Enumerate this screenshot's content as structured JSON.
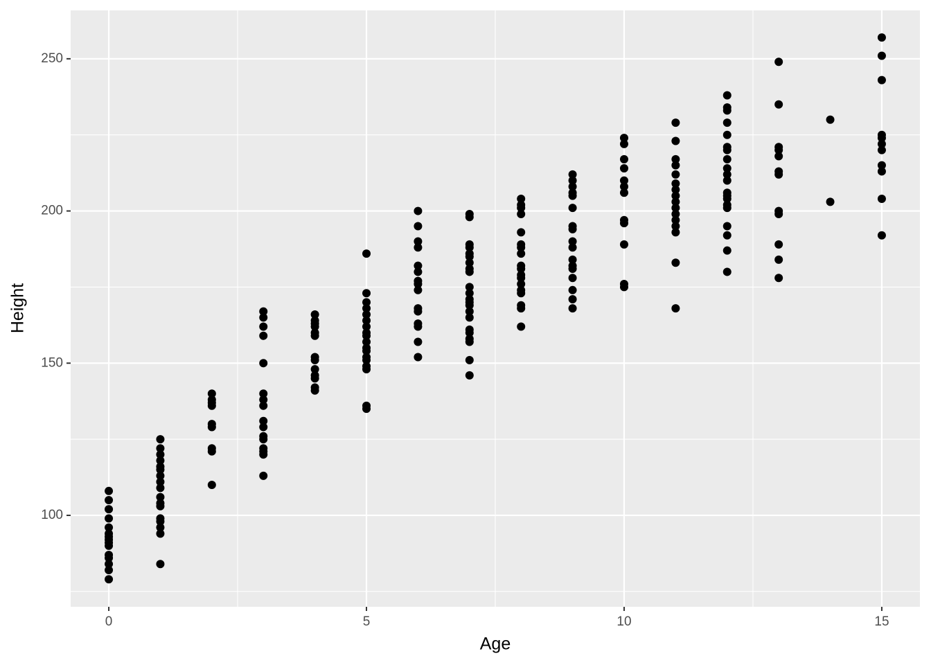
{
  "chart_data": {
    "type": "scatter",
    "x_label": "Age",
    "y_label": "Height",
    "color": "#000000",
    "panel_color": "#ebebeb",
    "grid": true,
    "xlim": [
      -0.74,
      15.74
    ],
    "ylim": [
      69.95,
      265.9
    ],
    "xticks": [
      0,
      5,
      10,
      15
    ],
    "yticks": [
      100,
      150,
      200,
      250
    ],
    "xminor": [
      2.5,
      7.5,
      12.5
    ],
    "yminor": [
      75,
      125,
      175,
      225
    ],
    "x": [
      0,
      0,
      0,
      0,
      0,
      0,
      0,
      0,
      0,
      0,
      0,
      0,
      0,
      0,
      0,
      1,
      1,
      1,
      1,
      1,
      1,
      1,
      1,
      1,
      1,
      1,
      1,
      1,
      1,
      1,
      1,
      1,
      2,
      2,
      2,
      2,
      2,
      2,
      2,
      2,
      2,
      3,
      3,
      3,
      3,
      3,
      3,
      3,
      3,
      3,
      3,
      3,
      3,
      3,
      3,
      3,
      3,
      4,
      4,
      4,
      4,
      4,
      4,
      4,
      4,
      4,
      4,
      4,
      4,
      4,
      5,
      5,
      5,
      5,
      5,
      5,
      5,
      5,
      5,
      5,
      5,
      5,
      5,
      5,
      5,
      5,
      5,
      5,
      6,
      6,
      6,
      6,
      6,
      6,
      6,
      6,
      6,
      6,
      6,
      6,
      6,
      6,
      6,
      7,
      7,
      7,
      7,
      7,
      7,
      7,
      7,
      7,
      7,
      7,
      7,
      7,
      7,
      7,
      7,
      7,
      7,
      7,
      7,
      7,
      7,
      8,
      8,
      8,
      8,
      8,
      8,
      8,
      8,
      8,
      8,
      8,
      8,
      8,
      8,
      8,
      8,
      8,
      8,
      9,
      9,
      9,
      9,
      9,
      9,
      9,
      9,
      9,
      9,
      9,
      9,
      9,
      9,
      9,
      9,
      9,
      10,
      10,
      10,
      10,
      10,
      10,
      10,
      10,
      10,
      10,
      10,
      10,
      11,
      11,
      11,
      11,
      11,
      11,
      11,
      11,
      11,
      11,
      11,
      11,
      11,
      11,
      11,
      11,
      12,
      12,
      12,
      12,
      12,
      12,
      12,
      12,
      12,
      12,
      12,
      12,
      12,
      12,
      12,
      12,
      12,
      12,
      12,
      12,
      13,
      13,
      13,
      13,
      13,
      13,
      13,
      13,
      13,
      13,
      13,
      13,
      14,
      14,
      15,
      15,
      15,
      15,
      15,
      15,
      15,
      15,
      15,
      15,
      15
    ],
    "y": [
      108,
      105,
      102,
      99,
      96,
      94,
      93,
      92,
      91,
      90,
      87,
      86,
      84,
      82,
      79,
      125,
      122,
      120,
      118,
      116,
      115,
      113,
      111,
      109,
      106,
      104,
      103,
      99,
      98,
      96,
      94,
      84,
      140,
      138,
      137,
      136,
      130,
      129,
      122,
      121,
      110,
      167,
      165,
      162,
      159,
      150,
      140,
      138,
      136,
      131,
      129,
      126,
      125,
      122,
      121,
      120,
      113,
      166,
      164,
      163,
      162,
      160,
      159,
      152,
      151,
      148,
      146,
      145,
      142,
      141,
      186,
      173,
      170,
      168,
      166,
      164,
      162,
      160,
      159,
      157,
      155,
      154,
      152,
      151,
      149,
      148,
      136,
      135,
      200,
      195,
      190,
      188,
      182,
      180,
      177,
      176,
      174,
      168,
      167,
      163,
      162,
      157,
      152,
      199,
      198,
      189,
      188,
      186,
      185,
      183,
      181,
      180,
      175,
      173,
      171,
      170,
      169,
      167,
      165,
      161,
      160,
      158,
      157,
      151,
      146,
      204,
      202,
      201,
      199,
      193,
      189,
      188,
      186,
      182,
      181,
      179,
      178,
      176,
      174,
      173,
      169,
      168,
      162,
      212,
      210,
      208,
      206,
      205,
      201,
      195,
      194,
      190,
      188,
      184,
      182,
      181,
      178,
      174,
      171,
      168,
      224,
      222,
      217,
      214,
      210,
      208,
      206,
      197,
      196,
      189,
      176,
      175,
      229,
      223,
      217,
      215,
      212,
      209,
      207,
      205,
      203,
      201,
      199,
      197,
      195,
      193,
      183,
      168,
      238,
      234,
      233,
      229,
      225,
      221,
      220,
      217,
      214,
      212,
      210,
      206,
      205,
      204,
      202,
      201,
      195,
      192,
      187,
      180,
      249,
      235,
      221,
      220,
      218,
      213,
      212,
      200,
      199,
      189,
      184,
      178,
      230,
      203,
      257,
      251,
      243,
      225,
      224,
      222,
      220,
      215,
      213,
      204,
      192
    ]
  }
}
